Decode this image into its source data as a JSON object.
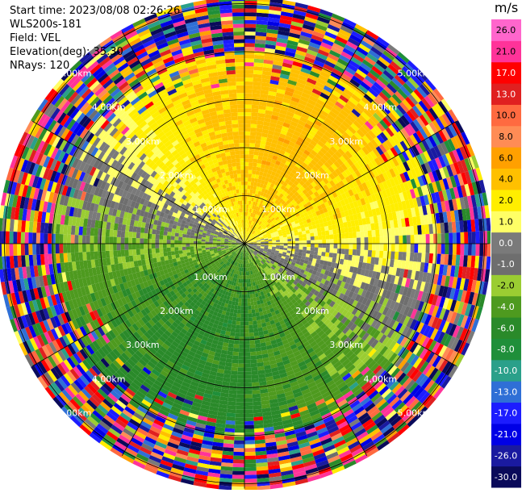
{
  "info": {
    "start_time": "Start time: 2023/08/08 02:26:26",
    "instrument": "WLS200s-181",
    "field": "Field: VEL",
    "elevation": "Elevation(deg): 35.30",
    "nrays": "NRays: 120"
  },
  "chart_data": {
    "type": "heatmap",
    "subtype": "polar-ppi",
    "field": "VEL",
    "units": "m/s",
    "n_rays": 120,
    "range_rings": [
      {
        "range_km": 1,
        "label": "1.00km"
      },
      {
        "range_km": 2,
        "label": "2.00km"
      },
      {
        "range_km": 3,
        "label": "3.00km"
      },
      {
        "range_km": 4,
        "label": "4.00km"
      },
      {
        "range_km": 5,
        "label": "5.00km"
      }
    ],
    "colorbar": {
      "levels": [
        -30,
        -26,
        -21,
        -17,
        -13,
        -10,
        -8,
        -6,
        -4,
        -2,
        -1,
        0,
        1,
        2,
        4,
        6,
        8,
        10,
        13,
        17,
        21,
        26
      ],
      "tick_labels": [
        "-30.0",
        "-26.0",
        "-21.0",
        "-17.0",
        "-13.0",
        "-10.0",
        "-8.0",
        "-6.0",
        "-4.0",
        "-2.0",
        "-1.0",
        "0.0",
        "1.0",
        "2.0",
        "4.0",
        "6.0",
        "8.0",
        "10.0",
        "13.0",
        "17.0",
        "21.0",
        "26.0"
      ],
      "colors": [
        "#0a0a5a",
        "#1a1aa0",
        "#0000e6",
        "#1c1cff",
        "#2f6fd6",
        "#2aa08a",
        "#1f8f3a",
        "#2a8a2a",
        "#4e9a1f",
        "#9acd32",
        "#6e6e6e",
        "#7a7a7a",
        "#ffff66",
        "#ffee00",
        "#ffc000",
        "#ffa000",
        "#ff8c55",
        "#ff6a40",
        "#e02020",
        "#ff0000",
        "#ff3399",
        "#ff66cc"
      ]
    },
    "wind_pattern": {
      "toward_direction_deg": 20,
      "max_speed_ms": 5.0,
      "noise_beyond_km": 4.0
    }
  }
}
